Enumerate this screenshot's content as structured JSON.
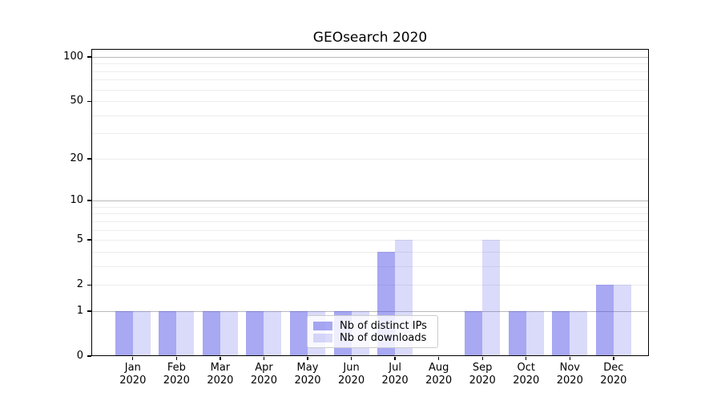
{
  "page": {
    "background": "#ffffff"
  },
  "chart_data": {
    "type": "bar",
    "title": "GEOsearch 2020",
    "categories": [
      {
        "month": "Jan",
        "year": "2020"
      },
      {
        "month": "Feb",
        "year": "2020"
      },
      {
        "month": "Mar",
        "year": "2020"
      },
      {
        "month": "Apr",
        "year": "2020"
      },
      {
        "month": "May",
        "year": "2020"
      },
      {
        "month": "Jun",
        "year": "2020"
      },
      {
        "month": "Jul",
        "year": "2020"
      },
      {
        "month": "Aug",
        "year": "2020"
      },
      {
        "month": "Sep",
        "year": "2020"
      },
      {
        "month": "Oct",
        "year": "2020"
      },
      {
        "month": "Nov",
        "year": "2020"
      },
      {
        "month": "Dec",
        "year": "2020"
      }
    ],
    "series": [
      {
        "name": "Nb of distinct IPs",
        "color": "rgba(70,70,230,0.47)",
        "values": [
          1,
          1,
          1,
          1,
          1,
          1,
          4,
          0,
          1,
          1,
          1,
          2
        ]
      },
      {
        "name": "Nb of downloads",
        "color": "rgba(70,70,230,0.20)",
        "values": [
          1,
          1,
          1,
          1,
          1,
          1,
          5,
          0,
          5,
          1,
          1,
          2
        ]
      }
    ],
    "xlabel": "",
    "ylabel": "",
    "yscale": "log1p",
    "ylim": [
      0,
      114
    ],
    "yticks": [
      0,
      1,
      2,
      5,
      10,
      20,
      50,
      100
    ],
    "grid": {
      "orientation": "horizontal",
      "major_values": [
        1,
        10,
        100
      ],
      "minor_values": [
        2,
        3,
        4,
        5,
        6,
        7,
        8,
        9,
        20,
        30,
        40,
        50,
        60,
        70,
        80,
        90
      ],
      "major_color": "#b8b8b8",
      "minor_color": "#ededed"
    },
    "legend": {
      "position": "lower center",
      "bg": "rgba(255,255,255,0.8)",
      "border": "#cccccc"
    },
    "axis_color": "#000000"
  }
}
